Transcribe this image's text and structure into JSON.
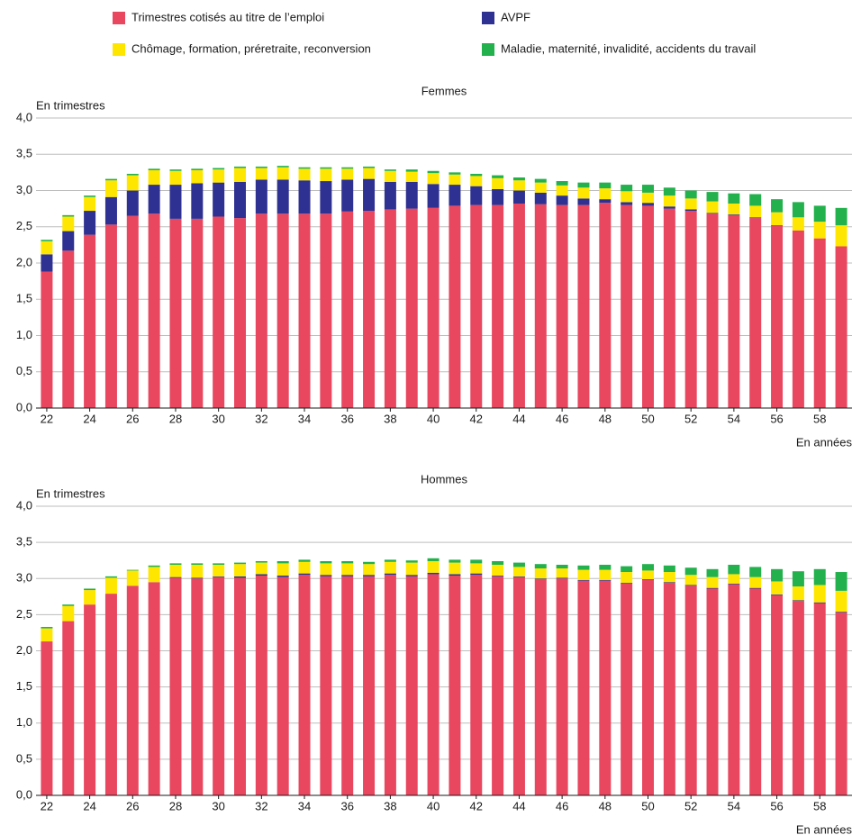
{
  "chart_data": [
    {
      "type": "bar",
      "stacked": true,
      "title": "Femmes",
      "ylabel": "En trimestres",
      "xlabel": "En années",
      "categories": [
        22,
        null,
        24,
        null,
        26,
        null,
        28,
        null,
        30,
        null,
        32,
        null,
        34,
        null,
        36,
        null,
        38,
        null,
        40,
        null,
        42,
        null,
        44,
        null,
        46,
        null,
        48,
        null,
        50,
        null,
        52,
        null,
        54,
        null,
        56,
        null,
        58,
        null
      ],
      "series": [
        {
          "name": "Trimestres cotisés au titre de l’emploi",
          "color": "#e8475f",
          "values": [
            1.88,
            2.17,
            2.39,
            2.53,
            2.65,
            2.68,
            2.61,
            2.61,
            2.64,
            2.62,
            2.68,
            2.68,
            2.68,
            2.68,
            2.71,
            2.72,
            2.74,
            2.75,
            2.76,
            2.79,
            2.8,
            2.8,
            2.82,
            2.81,
            2.8,
            2.8,
            2.83,
            2.8,
            2.79,
            2.75,
            2.72,
            2.68,
            2.66,
            2.62,
            2.51,
            2.45,
            2.34,
            2.23
          ]
        },
        {
          "name": "AVPF",
          "color": "#2e3192",
          "values": [
            0.24,
            0.27,
            0.33,
            0.38,
            0.35,
            0.4,
            0.47,
            0.49,
            0.47,
            0.5,
            0.47,
            0.47,
            0.46,
            0.45,
            0.44,
            0.44,
            0.38,
            0.37,
            0.33,
            0.29,
            0.26,
            0.22,
            0.18,
            0.16,
            0.13,
            0.09,
            0.05,
            0.04,
            0.04,
            0.03,
            0.02,
            0.01,
            0.01,
            0.01,
            0.01,
            0,
            0,
            0
          ]
        },
        {
          "name": "Chômage, formation, préretraite, reconversion",
          "color": "#ffe600",
          "values": [
            0.18,
            0.2,
            0.19,
            0.23,
            0.21,
            0.2,
            0.19,
            0.18,
            0.18,
            0.19,
            0.16,
            0.17,
            0.16,
            0.17,
            0.15,
            0.15,
            0.15,
            0.14,
            0.15,
            0.14,
            0.14,
            0.15,
            0.14,
            0.14,
            0.14,
            0.15,
            0.15,
            0.15,
            0.14,
            0.15,
            0.15,
            0.16,
            0.15,
            0.16,
            0.18,
            0.18,
            0.23,
            0.29
          ]
        },
        {
          "name": "Maladie, maternité, invalidité, accidents du travail",
          "color": "#22b14c",
          "values": [
            0.02,
            0.02,
            0.02,
            0.02,
            0.02,
            0.02,
            0.02,
            0.02,
            0.02,
            0.02,
            0.02,
            0.02,
            0.02,
            0.02,
            0.02,
            0.02,
            0.02,
            0.03,
            0.03,
            0.03,
            0.03,
            0.04,
            0.04,
            0.05,
            0.06,
            0.07,
            0.08,
            0.09,
            0.11,
            0.11,
            0.11,
            0.13,
            0.14,
            0.16,
            0.18,
            0.21,
            0.22,
            0.24
          ]
        }
      ],
      "ylim": [
        0,
        4
      ],
      "yticks": [
        {
          "value": 0,
          "label": "0,0"
        },
        {
          "value": 0.5,
          "label": "0,5"
        },
        {
          "value": 1,
          "label": "1,0"
        },
        {
          "value": 1.5,
          "label": "1,5"
        },
        {
          "value": 2,
          "label": "2,0"
        },
        {
          "value": 2.5,
          "label": "2,5"
        },
        {
          "value": 3,
          "label": "3,0"
        },
        {
          "value": 3.5,
          "label": "3,5"
        },
        {
          "value": 4,
          "label": "4,0"
        }
      ],
      "grid": true
    },
    {
      "type": "bar",
      "stacked": true,
      "title": "Hommes",
      "ylabel": "En trimestres",
      "xlabel": "En années",
      "categories": [
        22,
        null,
        24,
        null,
        26,
        null,
        28,
        null,
        30,
        null,
        32,
        null,
        34,
        null,
        36,
        null,
        38,
        null,
        40,
        null,
        42,
        null,
        44,
        null,
        46,
        null,
        48,
        null,
        50,
        null,
        52,
        null,
        54,
        null,
        56,
        null,
        58,
        null
      ],
      "series": [
        {
          "color": "#e8475f",
          "values": [
            2.13,
            2.41,
            2.64,
            2.79,
            2.9,
            2.95,
            3.01,
            3.0,
            3.02,
            3.01,
            3.04,
            3.02,
            3.05,
            3.03,
            3.03,
            3.03,
            3.05,
            3.03,
            3.06,
            3.04,
            3.05,
            3.03,
            3.02,
            2.99,
            3.0,
            2.97,
            2.97,
            2.93,
            2.98,
            2.94,
            2.9,
            2.86,
            2.92,
            2.86,
            2.77,
            2.69,
            2.66,
            2.53
          ]
        },
        {
          "color": "#2e3192",
          "values": [
            0,
            0,
            0,
            0,
            0,
            0,
            0.01,
            0.01,
            0.01,
            0.02,
            0.02,
            0.02,
            0.02,
            0.02,
            0.02,
            0.02,
            0.02,
            0.02,
            0.02,
            0.02,
            0.02,
            0.01,
            0.01,
            0.01,
            0.01,
            0.01,
            0.01,
            0.01,
            0.01,
            0.01,
            0.01,
            0.01,
            0.01,
            0.01,
            0.01,
            0.01,
            0.01,
            0.01
          ]
        },
        {
          "color": "#ffe600",
          "values": [
            0.18,
            0.21,
            0.2,
            0.22,
            0.21,
            0.21,
            0.17,
            0.18,
            0.16,
            0.17,
            0.16,
            0.17,
            0.16,
            0.16,
            0.16,
            0.15,
            0.16,
            0.17,
            0.16,
            0.16,
            0.14,
            0.15,
            0.13,
            0.14,
            0.13,
            0.14,
            0.14,
            0.15,
            0.12,
            0.14,
            0.14,
            0.15,
            0.13,
            0.15,
            0.18,
            0.19,
            0.24,
            0.29
          ]
        },
        {
          "color": "#22b14c",
          "values": [
            0.02,
            0.02,
            0.02,
            0.02,
            0.01,
            0.02,
            0.02,
            0.02,
            0.02,
            0.02,
            0.02,
            0.03,
            0.03,
            0.03,
            0.03,
            0.03,
            0.03,
            0.03,
            0.04,
            0.04,
            0.05,
            0.05,
            0.06,
            0.06,
            0.05,
            0.06,
            0.07,
            0.08,
            0.09,
            0.09,
            0.1,
            0.11,
            0.13,
            0.14,
            0.17,
            0.21,
            0.22,
            0.26
          ]
        }
      ],
      "ylim": [
        0,
        4
      ],
      "yticks": [
        {
          "value": 0,
          "label": "0,0"
        },
        {
          "value": 0.5,
          "label": "0,5"
        },
        {
          "value": 1,
          "label": "1,0"
        },
        {
          "value": 1.5,
          "label": "1,5"
        },
        {
          "value": 2,
          "label": "2,0"
        },
        {
          "value": 2.5,
          "label": "2,5"
        },
        {
          "value": 3,
          "label": "3,0"
        },
        {
          "value": 3.5,
          "label": "3,5"
        },
        {
          "value": 4,
          "label": "4,0"
        }
      ],
      "grid": true
    }
  ]
}
